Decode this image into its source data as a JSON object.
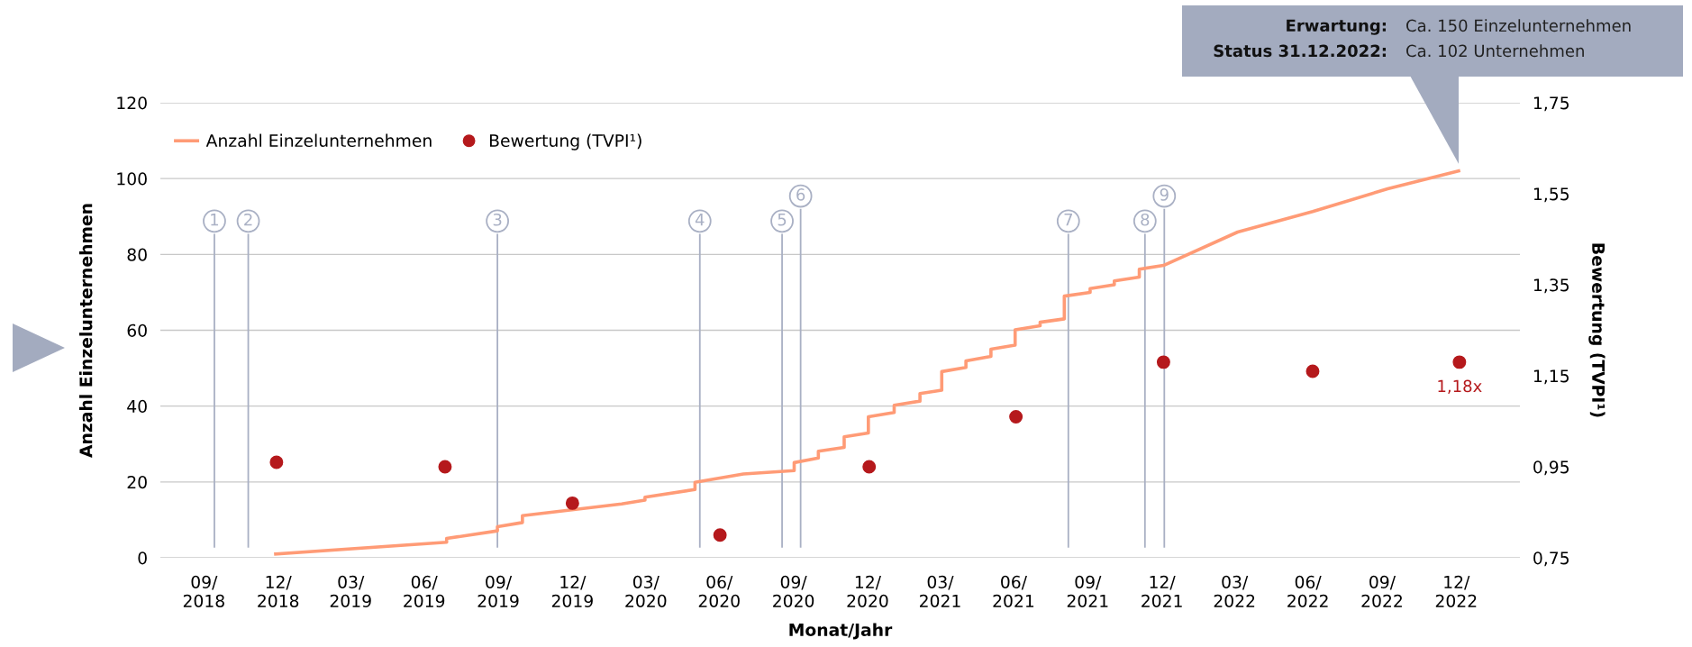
{
  "chart_data": {
    "type": "line",
    "xlabel": "Monat/Jahr",
    "ylabel": "Anzahl Einzelunternehmen",
    "y2label": "Bewertung (TVPI¹)",
    "xlim": [
      "2018-08-07",
      "2023-03-20"
    ],
    "xticks": [
      {
        "value": "2018-09-30",
        "label": "09/\n2018"
      },
      {
        "value": "2018-12-31",
        "label": "12/\n2018"
      },
      {
        "value": "2019-03-31",
        "label": "03/\n2019"
      },
      {
        "value": "2019-06-30",
        "label": "06/\n2019"
      },
      {
        "value": "2019-09-30",
        "label": "09/\n2019"
      },
      {
        "value": "2019-12-31",
        "label": "12/\n2019"
      },
      {
        "value": "2020-03-31",
        "label": "03/\n2020"
      },
      {
        "value": "2020-06-30",
        "label": "06/\n2020"
      },
      {
        "value": "2020-09-30",
        "label": "09/\n2020"
      },
      {
        "value": "2020-12-31",
        "label": "12/\n2020"
      },
      {
        "value": "2021-03-31",
        "label": "03/\n2021"
      },
      {
        "value": "2021-06-30",
        "label": "06/\n2021"
      },
      {
        "value": "2021-09-30",
        "label": "09/\n2021"
      },
      {
        "value": "2021-12-31",
        "label": "12/\n2021"
      },
      {
        "value": "2022-03-31",
        "label": "03/\n2022"
      },
      {
        "value": "2022-06-30",
        "label": "06/\n2022"
      },
      {
        "value": "2022-09-30",
        "label": "09/\n2022"
      },
      {
        "value": "2022-12-31",
        "label": "12/\n2022"
      }
    ],
    "ylim": [
      0,
      120
    ],
    "yticks": [
      0,
      20,
      40,
      60,
      80,
      100,
      120
    ],
    "y2lim": [
      0.75,
      1.75
    ],
    "y2ticks": [
      {
        "value": 0.75,
        "label": "0,75"
      },
      {
        "value": 0.95,
        "label": "0,95"
      },
      {
        "value": 1.15,
        "label": "1,15"
      },
      {
        "value": 1.35,
        "label": "1,35"
      },
      {
        "value": 1.55,
        "label": "1,55"
      },
      {
        "value": 1.75,
        "label": "1,75"
      }
    ],
    "grid": "y",
    "legend": "top left",
    "series": [
      {
        "name": "Anzahl Einzelunternehmen",
        "color": "#ff9b76",
        "marker": "none",
        "line_style": "solid",
        "x": [
          "2018-12-28",
          "2019-07-28",
          "2019-07-28",
          "2019-09-29",
          "2019-09-29",
          "2019-10-30",
          "2019-10-30",
          "2020-03-01",
          "2020-03-30",
          "2020-03-30",
          "2020-05-31",
          "2020-05-31",
          "2020-07-30",
          "2020-10-01",
          "2020-10-01",
          "2020-10-31",
          "2020-10-31",
          "2020-12-02",
          "2020-12-02",
          "2021-01-01",
          "2021-01-01",
          "2021-02-02",
          "2021-02-02",
          "2021-03-06",
          "2021-03-06",
          "2021-04-02",
          "2021-04-02",
          "2021-05-02",
          "2021-05-02",
          "2021-06-02",
          "2021-06-02",
          "2021-07-02",
          "2021-07-02",
          "2021-08-02",
          "2021-08-02",
          "2021-09-01",
          "2021-09-01",
          "2021-10-03",
          "2021-10-03",
          "2021-11-02",
          "2021-11-02",
          "2021-12-03",
          "2021-12-03",
          "2022-01-02",
          "2022-04-04",
          "2022-07-06",
          "2022-10-07",
          "2023-01-03"
        ],
        "values": [
          1.0,
          4.1,
          5.1,
          7.1,
          8.2,
          9.3,
          11.1,
          14.2,
          15.2,
          16.0,
          18.0,
          19.9,
          22.1,
          23.0,
          25.1,
          26.3,
          28.1,
          29.1,
          31.9,
          32.9,
          37.2,
          38.3,
          40.2,
          41.3,
          43.3,
          44.2,
          49.1,
          50.2,
          51.9,
          53.1,
          55.0,
          56.1,
          60.1,
          61.2,
          62.1,
          63.0,
          69.0,
          70.0,
          71.0,
          72.0,
          73.0,
          74.0,
          76.1,
          77.1,
          85.9,
          91.3,
          97.3,
          102
        ]
      },
      {
        "name": "Bewertung (TVPI¹)",
        "type": "scatter",
        "axis": "y2",
        "color": "#b5191c",
        "marker": "circle",
        "x": [
          "2018-12-29",
          "2019-07-26",
          "2019-12-31",
          "2020-07-01",
          "2021-01-02",
          "2021-07-03",
          "2022-01-02",
          "2022-07-06",
          "2023-01-04"
        ],
        "values": [
          0.96,
          0.95,
          0.87,
          0.8,
          0.95,
          1.06,
          1.18,
          1.16,
          1.18
        ],
        "value_labels": [
          null,
          null,
          null,
          null,
          null,
          null,
          null,
          null,
          "1,18x"
        ]
      }
    ],
    "ref_lines": [
      {
        "axis": "x",
        "value": "2018-10-13",
        "label": "1",
        "color": "#a9b0c4"
      },
      {
        "axis": "x",
        "value": "2018-11-24",
        "label": "2",
        "color": "#a9b0c4"
      },
      {
        "axis": "x",
        "value": "2019-09-29",
        "label": "3",
        "color": "#a9b0c4"
      },
      {
        "axis": "x",
        "value": "2020-06-06",
        "label": "4",
        "color": "#a9b0c4"
      },
      {
        "axis": "x",
        "value": "2020-09-16",
        "label": "5",
        "color": "#a9b0c4"
      },
      {
        "axis": "x",
        "value": "2020-10-09",
        "label": "6",
        "color": "#a9b0c4"
      },
      {
        "axis": "x",
        "value": "2021-09-06",
        "label": "7",
        "color": "#a9b0c4"
      },
      {
        "axis": "x",
        "value": "2021-12-10",
        "label": "8",
        "color": "#a9b0c4"
      },
      {
        "axis": "x",
        "value": "2022-01-03",
        "label": "9",
        "color": "#a9b0c4"
      }
    ],
    "annotations": [
      "Erwartung:",
      "Ca. 150 Einzelunternehmen",
      "Status 31.12.2022:",
      "Ca. 102 Unternehmen"
    ]
  }
}
